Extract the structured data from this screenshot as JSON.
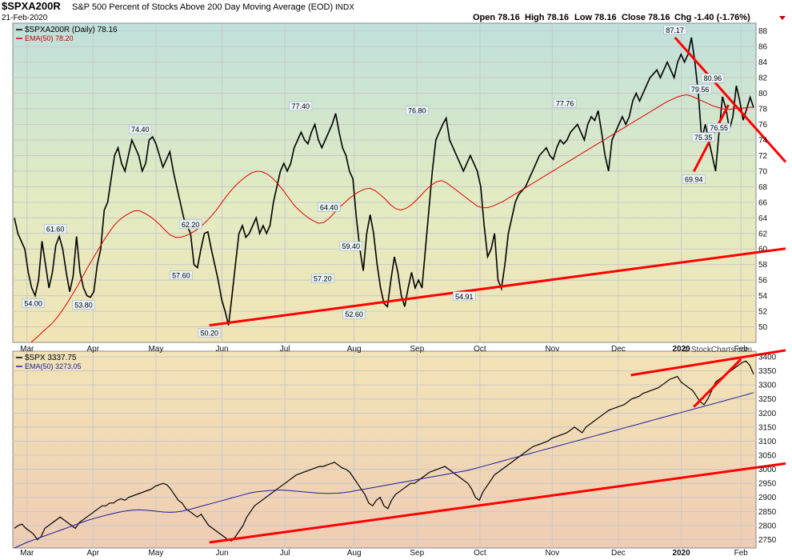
{
  "header": {
    "symbol": "$SPXA200R",
    "description": "S&P 500 Percent of Stocks Above 200 Day Moving Average (EOD)",
    "exchange": "INDX",
    "date": "21-Feb-2020",
    "open": "Open 78.16",
    "high": "High 78.16",
    "low": "Low 78.16",
    "close": "Close 78.16",
    "chg": "Chg -1.40 (-1.76%)",
    "watermark": "© StockCharts.com"
  },
  "colors": {
    "price": "#000000",
    "ema": "#e00000",
    "ema2": "#1c1c9c",
    "trend": "#ff0000",
    "chg": "#c00000"
  },
  "chart_data": [
    {
      "type": "line",
      "panel": "top",
      "legend": [
        "$SPXA200R (Daily) 78.16",
        "EMA(50) 78.20"
      ],
      "ylim": [
        48,
        89
      ],
      "yticks": [
        50,
        52,
        54,
        56,
        58,
        60,
        62,
        64,
        66,
        68,
        70,
        72,
        74,
        76,
        78,
        80,
        82,
        84,
        86,
        88
      ],
      "xlabels": [
        "Mar",
        "Apr",
        "May",
        "Jun",
        "Jul",
        "Aug",
        "Sep",
        "Oct",
        "Nov",
        "Dec",
        "2020",
        "Feb"
      ],
      "xlabel_index": [
        4,
        25,
        45,
        66,
        86,
        108,
        128,
        148,
        171,
        192,
        212,
        231
      ],
      "series": [
        {
          "name": "$SPXA200R",
          "values": [
            64,
            62,
            61,
            60,
            57,
            55,
            54,
            56,
            61,
            58,
            55,
            57,
            60.5,
            61.6,
            60,
            57,
            54.5,
            56.5,
            61.6,
            57,
            55,
            54,
            53.8,
            54.5,
            58,
            60,
            65,
            66,
            69,
            72,
            73,
            71,
            70,
            72,
            74,
            73,
            72,
            70,
            71,
            74,
            74.4,
            73.5,
            72,
            70.5,
            71.5,
            72.5,
            70,
            68,
            66,
            64,
            63,
            62,
            58,
            57.6,
            60,
            62,
            62.2,
            60,
            58,
            56,
            53.5,
            52,
            50.2,
            54,
            58,
            62,
            63,
            61.5,
            62,
            63,
            64,
            62,
            63,
            62,
            63,
            66,
            68,
            70,
            71,
            70,
            71,
            73,
            74,
            75,
            74,
            73.5,
            75,
            76,
            74,
            73,
            74,
            75,
            76,
            77.4,
            75,
            73,
            72,
            70,
            69,
            64,
            60,
            57.2,
            62,
            64.4,
            62,
            58,
            55,
            53,
            52.6,
            56,
            59,
            57,
            54,
            52.6,
            55,
            57,
            55,
            56,
            55,
            60,
            65,
            70,
            74,
            75,
            76,
            76.8,
            74,
            73,
            72,
            71,
            70,
            71,
            72,
            71,
            70,
            68,
            63,
            59,
            60,
            62,
            56,
            54.91,
            58,
            62,
            64,
            66,
            67,
            67.5,
            68,
            69,
            70,
            71,
            72,
            72.5,
            73,
            72,
            71.5,
            73,
            74,
            73.5,
            74,
            75,
            75.5,
            76,
            75,
            74,
            76,
            77,
            76.5,
            77.76,
            75,
            72,
            70,
            74,
            75,
            76,
            77,
            76,
            77,
            79,
            80,
            79,
            80,
            81,
            82,
            82.5,
            83,
            82,
            83,
            84,
            83,
            82,
            84,
            85,
            84,
            85,
            87.17,
            84,
            80,
            74,
            76,
            74,
            72,
            70,
            75,
            79.56,
            78,
            75.35,
            77,
            80.96,
            79,
            76.55,
            78,
            79.5,
            78.16
          ]
        },
        {
          "name": "EMA(50)",
          "values": [
            47.5,
            48.1,
            48.7,
            49.3,
            49.9,
            50.5,
            51.3,
            52.2,
            53.2,
            54.3,
            55.4,
            56.6,
            57.8,
            58.9,
            60,
            61.1,
            62.1,
            63,
            63.7,
            64.2,
            64.6,
            64.9,
            64.9,
            64.6,
            64.2,
            63.7,
            63.1,
            62.4,
            61.8,
            61.5,
            61.5,
            61.7,
            62,
            62.4,
            62.9,
            63.5,
            64.2,
            65,
            65.9,
            66.8,
            67.6,
            68.3,
            68.9,
            69.4,
            69.8,
            70,
            69.9,
            69.6,
            69.1,
            68.4,
            67.6,
            66.7,
            65.8,
            65.1,
            64.5,
            64,
            63.6,
            63.3,
            63.4,
            63.9,
            64.6,
            65.3,
            65.9,
            66.5,
            67,
            67.4,
            67.7,
            67.8,
            67.5,
            67,
            66.4,
            65.7,
            65.2,
            65,
            65.2,
            65.6,
            66.2,
            66.9,
            67.6,
            68.2,
            68.6,
            68.8,
            68.5,
            68,
            67.5,
            67,
            66.5,
            66,
            65.5,
            65.3,
            65.3,
            65.5,
            65.8,
            66.1,
            66.5,
            66.9,
            67.3,
            67.7,
            68.1,
            68.5,
            68.9,
            69.3,
            69.7,
            70.1,
            70.5,
            70.9,
            71.3,
            71.7,
            72.1,
            72.5,
            72.9,
            73.3,
            73.7,
            74.1,
            74.5,
            74.9,
            75.3,
            75.7,
            76.1,
            76.5,
            76.9,
            77.3,
            77.7,
            78.1,
            78.5,
            78.9,
            79.2,
            79.5,
            79.7,
            79.8,
            79.6,
            79.3,
            79,
            78.7,
            78.4,
            78.2,
            78,
            77.9,
            78,
            78.1,
            78.1,
            78.2,
            78.2
          ]
        }
      ],
      "ema_x_start": 4,
      "annotations": [
        {
          "label": "61.60",
          "i": 13,
          "v": 61.6
        },
        {
          "label": "54.00",
          "i": 6,
          "v": 54
        },
        {
          "label": "53.80",
          "i": 22,
          "v": 53.8
        },
        {
          "label": "74.40",
          "i": 40,
          "v": 74.4
        },
        {
          "label": "57.60",
          "i": 53,
          "v": 57.6
        },
        {
          "label": "62.20",
          "i": 56,
          "v": 62.2
        },
        {
          "label": "50.20",
          "i": 62,
          "v": 50.2
        },
        {
          "label": "77.40",
          "i": 91,
          "v": 77.4
        },
        {
          "label": "57.20",
          "i": 98,
          "v": 57.2
        },
        {
          "label": "64.40",
          "i": 100,
          "v": 64.4
        },
        {
          "label": "59.40",
          "i": 107,
          "v": 59.4
        },
        {
          "label": "52.60",
          "i": 108,
          "v": 52.6
        },
        {
          "label": "76.80",
          "i": 128,
          "v": 76.8
        },
        {
          "label": "54.91",
          "i": 143,
          "v": 54.91
        },
        {
          "label": "77.76",
          "i": 175,
          "v": 77.76
        },
        {
          "label": "87.17",
          "i": 210,
          "v": 87.17
        },
        {
          "label": "69.94",
          "i": 216,
          "v": 69.94
        },
        {
          "label": "79.56",
          "i": 218,
          "v": 79.56
        },
        {
          "label": "75.35",
          "i": 219,
          "v": 75.35
        },
        {
          "label": "80.96",
          "i": 222,
          "v": 80.96
        },
        {
          "label": "76.55",
          "i": 224,
          "v": 76.55
        }
      ],
      "trendlines": [
        {
          "from": [
            62,
            50.2
          ],
          "to": [
            235,
            59.5
          ]
        },
        {
          "from": [
            210,
            87.17
          ],
          "to": [
            235,
            75.8
          ]
        },
        {
          "from": [
            216,
            69.94
          ],
          "to": [
            227,
            78.5
          ]
        }
      ]
    },
    {
      "type": "line",
      "panel": "bottom",
      "legend": [
        "$SPX 3337.75",
        "EMA(50) 3273.05"
      ],
      "ylim": [
        2720,
        3420
      ],
      "yticks": [
        2750,
        2800,
        2850,
        2900,
        2950,
        3000,
        3050,
        3100,
        3150,
        3200,
        3250,
        3300,
        3350,
        3400
      ],
      "xlabels": [
        "Mar",
        "Apr",
        "May",
        "Jun",
        "Jul",
        "Aug",
        "Sep",
        "Oct",
        "Nov",
        "Dec",
        "2020",
        "Feb"
      ],
      "series": [
        {
          "name": "$SPX",
          "values": [
            2790,
            2800,
            2805,
            2790,
            2780,
            2770,
            2750,
            2760,
            2790,
            2800,
            2810,
            2820,
            2830,
            2820,
            2810,
            2800,
            2790,
            2810,
            2820,
            2830,
            2840,
            2850,
            2860,
            2870,
            2870,
            2880,
            2880,
            2890,
            2895,
            2890,
            2900,
            2905,
            2910,
            2915,
            2920,
            2925,
            2930,
            2940,
            2945,
            2950,
            2945,
            2930,
            2910,
            2890,
            2880,
            2860,
            2850,
            2840,
            2830,
            2840,
            2820,
            2800,
            2790,
            2780,
            2770,
            2760,
            2750,
            2745,
            2760,
            2780,
            2800,
            2830,
            2850,
            2870,
            2880,
            2890,
            2900,
            2910,
            2920,
            2930,
            2940,
            2950,
            2960,
            2970,
            2980,
            2985,
            2990,
            2995,
            3000,
            3005,
            3010,
            3010,
            3015,
            3020,
            3025,
            3015,
            3005,
            3000,
            2990,
            2970,
            2950,
            2930,
            2910,
            2880,
            2870,
            2890,
            2900,
            2870,
            2860,
            2890,
            2910,
            2920,
            2930,
            2940,
            2950,
            2950,
            2960,
            2970,
            2980,
            2990,
            2995,
            3000,
            3005,
            3010,
            3000,
            2990,
            2980,
            2970,
            2960,
            2950,
            2930,
            2900,
            2890,
            2920,
            2940,
            2960,
            2980,
            2990,
            3000,
            3010,
            3020,
            3030,
            3040,
            3050,
            3060,
            3070,
            3080,
            3085,
            3090,
            3095,
            3100,
            3110,
            3115,
            3120,
            3125,
            3130,
            3140,
            3150,
            3140,
            3130,
            3150,
            3160,
            3170,
            3180,
            3190,
            3200,
            3210,
            3215,
            3220,
            3225,
            3230,
            3240,
            3250,
            3255,
            3260,
            3270,
            3275,
            3280,
            3285,
            3290,
            3300,
            3310,
            3320,
            3325,
            3330,
            3310,
            3300,
            3290,
            3280,
            3260,
            3240,
            3230,
            3250,
            3280,
            3310,
            3320,
            3330,
            3340,
            3350,
            3360,
            3370,
            3380,
            3385,
            3370,
            3337.75
          ]
        },
        {
          "name": "EMA(50)",
          "values": [
            2720,
            2730,
            2740,
            2748,
            2756,
            2764,
            2772,
            2780,
            2788,
            2796,
            2804,
            2812,
            2820,
            2826,
            2832,
            2838,
            2843,
            2848,
            2852,
            2855,
            2856,
            2855,
            2853,
            2850,
            2848,
            2847,
            2848,
            2851,
            2856,
            2862,
            2868,
            2874,
            2880,
            2886,
            2892,
            2898,
            2904,
            2910,
            2916,
            2920,
            2922,
            2924,
            2926,
            2926,
            2925,
            2923,
            2921,
            2919,
            2917,
            2915,
            2914,
            2914,
            2915,
            2917,
            2920,
            2924,
            2928,
            2932,
            2936,
            2940,
            2944,
            2948,
            2952,
            2956,
            2960,
            2964,
            2968,
            2972,
            2976,
            2980,
            2984,
            2988,
            2992,
            2996,
            3002,
            3008,
            3014,
            3020,
            3026,
            3032,
            3038,
            3044,
            3050,
            3056,
            3062,
            3068,
            3074,
            3080,
            3086,
            3092,
            3098,
            3104,
            3110,
            3116,
            3122,
            3128,
            3134,
            3140,
            3146,
            3152,
            3158,
            3164,
            3170,
            3176,
            3182,
            3188,
            3194,
            3200,
            3206,
            3212,
            3218,
            3224,
            3230,
            3236,
            3242,
            3248,
            3254,
            3260,
            3266,
            3273
          ]
        }
      ],
      "ema_x_start": 0,
      "trendlines": [
        {
          "from": [
            62,
            2740
          ],
          "to": [
            235,
            3005
          ]
        },
        {
          "from": [
            196,
            3335
          ],
          "to": [
            235,
            3405
          ]
        },
        {
          "from": [
            216,
            3222
          ],
          "to": [
            231,
            3392
          ]
        }
      ]
    }
  ]
}
